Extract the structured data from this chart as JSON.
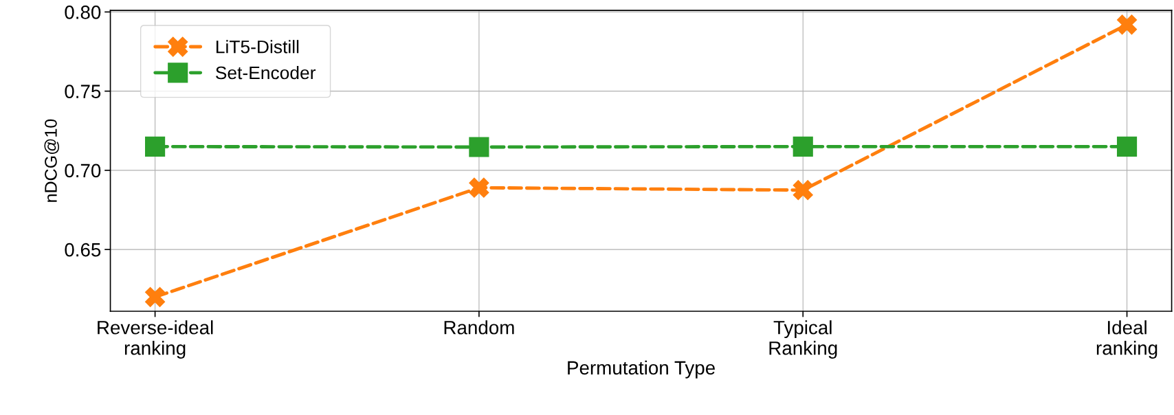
{
  "chart_data": {
    "type": "line",
    "xlabel": "Permutation Type",
    "ylabel": "nDCG@10",
    "categories": [
      "Reverse-ideal\nranking",
      "Random",
      "Typical\nRanking",
      "Ideal\nranking"
    ],
    "series": [
      {
        "name": "LiT5-Distill",
        "color": "#ff7f0e",
        "marker": "cross",
        "values": [
          0.62,
          0.689,
          0.6875,
          0.792
        ]
      },
      {
        "name": "Set-Encoder",
        "color": "#2ca02c",
        "marker": "square",
        "values": [
          0.715,
          0.7147,
          0.715,
          0.715
        ]
      }
    ],
    "ylim": [
      0.611,
      0.801
    ],
    "yticks": [
      {
        "value": 0.65,
        "label": "0.65"
      },
      {
        "value": 0.7,
        "label": "0.70"
      },
      {
        "value": 0.75,
        "label": "0.75"
      },
      {
        "value": 0.8,
        "label": "0.80"
      }
    ],
    "grid": true,
    "legend": "top left",
    "line_style": "dashed"
  }
}
